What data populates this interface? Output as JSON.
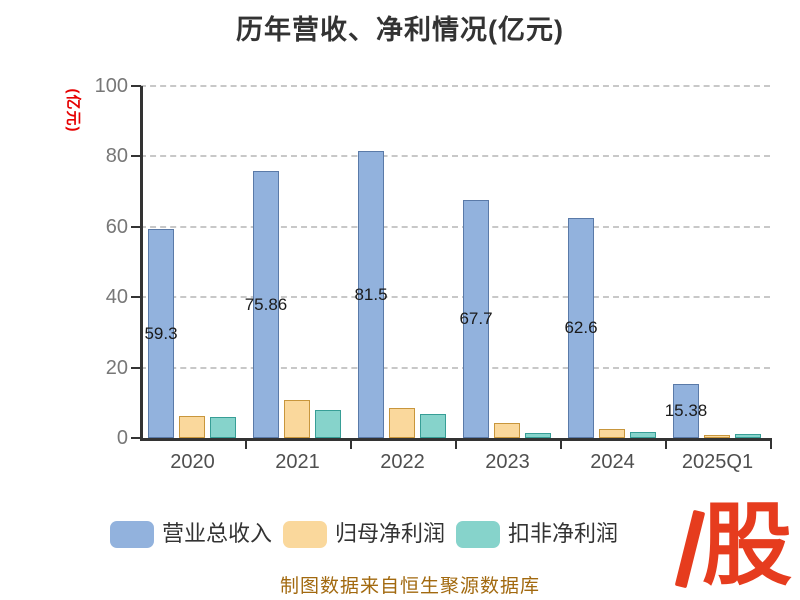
{
  "title": "历年营收、净利情况(亿元)",
  "footer_note": "制图数据来自恒生聚源数据库",
  "logo_char": "股",
  "colors": {
    "title": "#333333",
    "axis_line": "#333333",
    "grid_dash": "#c8c8c8",
    "y_tick_label": "#777777",
    "x_tick_label": "#4f4f4f",
    "unit_label": "#e60000",
    "bar_label": "#1a1a1a",
    "footer": "#a2690f",
    "logo": "#e63c1e",
    "legend_text": "#333333"
  },
  "y_axis": {
    "unit": "(亿元)",
    "tick_labels": [
      "100",
      "80",
      "60",
      "40",
      "20",
      "0"
    ]
  },
  "chart_data": {
    "type": "bar",
    "title": "历年营收、净利情况(亿元)",
    "categories": [
      "2020",
      "2021",
      "2022",
      "2023",
      "2024",
      "2025Q1"
    ],
    "series": [
      {
        "name": "营业总收入",
        "color": "#92b2dd",
        "border_color": "#5a7aa8",
        "values": [
          59.3,
          75.86,
          81.5,
          67.7,
          62.6,
          15.38
        ],
        "labels": [
          "59.3",
          "75.86",
          "81.5",
          "67.7",
          "62.6",
          "15.38"
        ]
      },
      {
        "name": "归母净利润",
        "color": "#fad89c",
        "border_color": "#c8963c",
        "values": [
          6.3,
          10.9,
          8.6,
          4.3,
          2.6,
          0.8
        ],
        "labels": []
      },
      {
        "name": "扣非净利润",
        "color": "#86d3cb",
        "border_color": "#379e96",
        "values": [
          6.0,
          8.0,
          6.9,
          1.5,
          1.8,
          1.1
        ],
        "labels": []
      }
    ],
    "ylabel": "(亿元)",
    "ylim": [
      0,
      100
    ],
    "grid": true,
    "grid_style": "dashed",
    "legend_position": "bottom"
  }
}
